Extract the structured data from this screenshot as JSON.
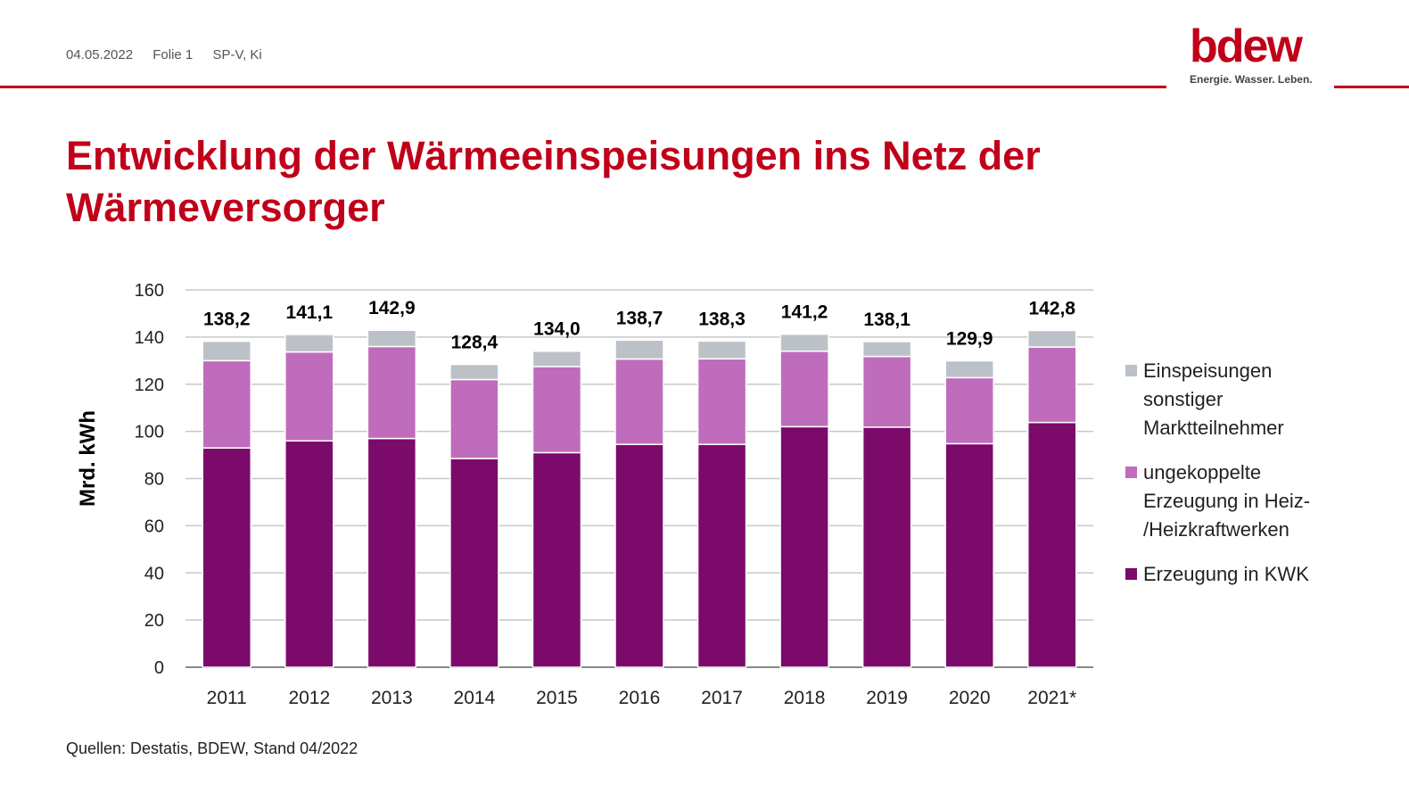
{
  "header": {
    "date": "04.05.2022",
    "slide": "Folie 1",
    "author": "SP-V, Ki"
  },
  "logo": {
    "word": "bdew",
    "tagline": "Energie. Wasser. Leben."
  },
  "title": "Entwicklung der Wärmeeinspeisungen ins Netz der Wärmeversorger",
  "source": "Quellen: Destatis, BDEW, Stand 04/2022",
  "colors": {
    "kwk": "#7b0a6a",
    "ungekoppelt": "#c06cbd",
    "sonstige": "#bcc1c7",
    "accent": "#c0001a"
  },
  "chart_data": {
    "type": "bar",
    "stacked": true,
    "categories": [
      "2011",
      "2012",
      "2013",
      "2014",
      "2015",
      "2016",
      "2017",
      "2018",
      "2019",
      "2020",
      "2021*"
    ],
    "series": [
      {
        "name": "Erzeugung in KWK",
        "values": [
          93.0,
          96.0,
          97.0,
          88.5,
          91.0,
          94.5,
          94.5,
          102.0,
          101.8,
          94.8,
          103.8
        ]
      },
      {
        "name": "ungekoppelte Erzeugung in Heiz-/Heizkraftwerken",
        "values": [
          37.0,
          37.7,
          39.0,
          33.5,
          36.5,
          36.2,
          36.3,
          32.0,
          30.0,
          28.0,
          32.0
        ]
      },
      {
        "name": "Einspeisungen sonstiger Marktteilnehmer",
        "values": [
          8.2,
          7.4,
          6.9,
          6.4,
          6.5,
          8.0,
          7.5,
          7.2,
          6.3,
          7.1,
          7.0
        ]
      }
    ],
    "totals": [
      "138,2",
      "141,1",
      "142,9",
      "128,4",
      "134,0",
      "138,7",
      "138,3",
      "141,2",
      "138,1",
      "129,9",
      "142,8"
    ],
    "ylabel": "Mrd. kWh",
    "ylim": [
      0,
      160
    ],
    "yticks": [
      0,
      20,
      40,
      60,
      80,
      100,
      120,
      140,
      160
    ],
    "grid": true,
    "legend_position": "right"
  },
  "legend": [
    {
      "lines": [
        "Einspeisungen",
        "sonstiger",
        "Marktteilnehmer"
      ],
      "color": "#bcc1c7"
    },
    {
      "lines": [
        "ungekoppelte",
        "Erzeugung in Heiz-",
        "/Heizkraftwerken"
      ],
      "color": "#c06cbd"
    },
    {
      "lines": [
        "Erzeugung in KWK"
      ],
      "color": "#7b0a6a"
    }
  ]
}
